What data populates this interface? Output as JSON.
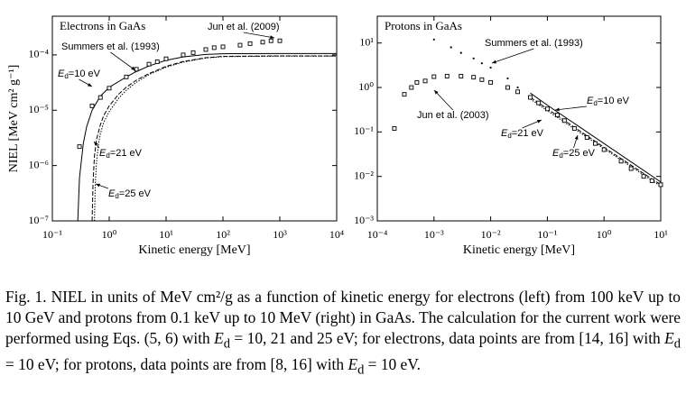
{
  "chart_data": [
    {
      "type": "line",
      "title": "Electrons in GaAs",
      "xlabel": "Kinetic energy [MeV]",
      "ylabel": "NIEL [MeV cm² g⁻¹]",
      "xscale": "log",
      "yscale": "log",
      "xlim": [
        0.1,
        10000
      ],
      "ylim": [
        1e-07,
        0.0005
      ],
      "xticks": [
        {
          "value": 0.1,
          "label": "10⁻¹"
        },
        {
          "value": 1,
          "label": "10⁰"
        },
        {
          "value": 10,
          "label": "10¹"
        },
        {
          "value": 100,
          "label": "10²"
        },
        {
          "value": 1000,
          "label": "10³"
        },
        {
          "value": 10000,
          "label": "10⁴"
        }
      ],
      "yticks": [
        {
          "value": 1e-07,
          "label": "10⁻⁷"
        },
        {
          "value": 1e-06,
          "label": "10⁻⁶"
        },
        {
          "value": 1e-05,
          "label": "10⁻⁵"
        },
        {
          "value": 0.0001,
          "label": "10⁻⁴"
        }
      ],
      "series": [
        {
          "color": "#000000",
          "line_style": "solid",
          "x": [
            0.28,
            0.3,
            0.35,
            0.4,
            0.5,
            0.7,
            1,
            2,
            3,
            5,
            10,
            20,
            50,
            100,
            1000,
            10000
          ],
          "values": [
            1e-07,
            6e-07,
            2.5e-06,
            5e-06,
            1e-05,
            1.8e-05,
            2.6e-05,
            4e-05,
            5e-05,
            6.3e-05,
            8e-05,
            9.2e-05,
            0.000102,
            0.000105,
            0.000106,
            0.000106
          ]
        },
        {
          "color": "#000000",
          "line_style": "dashed",
          "x": [
            0.5,
            0.52,
            0.55,
            0.6,
            0.7,
            0.8,
            1,
            1.5,
            2,
            3,
            5,
            10,
            20,
            50,
            100,
            1000,
            10000
          ],
          "values": [
            1e-07,
            5e-07,
            1.5e-06,
            3e-06,
            5.5e-06,
            8e-06,
            1.2e-05,
            2e-05,
            2.6e-05,
            3.5e-05,
            4.6e-05,
            6.2e-05,
            7.6e-05,
            8.9e-05,
            9.4e-05,
            9.6e-05,
            9.6e-05
          ]
        },
        {
          "color": "#000000",
          "line_style": "dotted",
          "x": [
            0.55,
            0.57,
            0.6,
            0.65,
            0.7,
            0.8,
            1,
            1.5,
            2,
            3,
            5,
            10,
            20,
            50,
            100,
            1000,
            10000
          ],
          "values": [
            1e-07,
            5e-07,
            1.2e-06,
            2.5e-06,
            3.8e-06,
            6e-06,
            9.5e-06,
            1.7e-05,
            2.3e-05,
            3.2e-05,
            4.4e-05,
            6e-05,
            7.4e-05,
            8.8e-05,
            9.3e-05,
            9.5e-05,
            9.5e-05
          ]
        },
        {
          "color": "#000000",
          "marker": "square",
          "x": [
            0.3,
            0.5,
            0.7,
            1,
            2,
            3,
            5,
            7,
            10,
            20,
            30,
            50,
            70,
            100,
            200,
            300,
            500,
            700,
            1000
          ],
          "values": [
            2.2e-06,
            1.2e-05,
            1.7e-05,
            2.5e-05,
            4e-05,
            5.5e-05,
            6.8e-05,
            7.5e-05,
            8.5e-05,
            0.0001,
            0.00011,
            0.000125,
            0.000135,
            0.00014,
            0.00015,
            0.00016,
            0.00017,
            0.00018,
            0.00018
          ]
        }
      ],
      "annotations": [
        {
          "text": "Jun et al. (2009)"
        },
        {
          "text": "Summers et al. (1993)"
        },
        {
          "main": "E",
          "sub": "d",
          "tail": "=10 eV"
        },
        {
          "main": "E",
          "sub": "d",
          "tail": "=21 eV"
        },
        {
          "main": "E",
          "sub": "d",
          "tail": "=25 eV"
        }
      ]
    },
    {
      "type": "line",
      "title": "Protons in GaAs",
      "xlabel": "Kinetic energy [MeV]",
      "xscale": "log",
      "yscale": "log",
      "xlim": [
        0.0001,
        10
      ],
      "ylim": [
        0.001,
        40
      ],
      "xticks": [
        {
          "value": 0.0001,
          "label": "10⁻⁴"
        },
        {
          "value": 0.001,
          "label": "10⁻³"
        },
        {
          "value": 0.01,
          "label": "10⁻²"
        },
        {
          "value": 0.1,
          "label": "10⁻¹"
        },
        {
          "value": 1,
          "label": "10⁰"
        },
        {
          "value": 10,
          "label": "10¹"
        }
      ],
      "yticks": [
        {
          "value": 0.001,
          "label": "10⁻³"
        },
        {
          "value": 0.01,
          "label": "10⁻²"
        },
        {
          "value": 0.1,
          "label": "10⁻¹"
        },
        {
          "value": 1,
          "label": "10⁰"
        },
        {
          "value": 10,
          "label": "10¹"
        }
      ],
      "series": [
        {
          "color": "#000000",
          "line_style": "solid",
          "x": [
            0.05,
            0.1,
            1,
            10
          ],
          "values": [
            0.75,
            0.4,
            0.055,
            0.0075
          ]
        },
        {
          "color": "#000000",
          "line_style": "dashed",
          "x": [
            0.05,
            0.1,
            1,
            10
          ],
          "values": [
            0.6,
            0.33,
            0.045,
            0.0065
          ]
        },
        {
          "color": "#000000",
          "line_style": "dotted",
          "x": [
            0.05,
            0.1,
            1,
            10
          ],
          "values": [
            0.55,
            0.3,
            0.042,
            0.006
          ]
        },
        {
          "color": "#000000",
          "marker": "square",
          "x": [
            0.0002,
            0.0003,
            0.0004,
            0.0005,
            0.0007,
            0.001,
            0.0017,
            0.003,
            0.005,
            0.007,
            0.01,
            0.02,
            0.03,
            0.05,
            0.07,
            0.1,
            0.15,
            0.2,
            0.3,
            0.5,
            0.7,
            1,
            2,
            3,
            5,
            7,
            10
          ],
          "values": [
            0.12,
            0.7,
            1.0,
            1.3,
            1.4,
            1.75,
            1.8,
            1.8,
            1.7,
            1.5,
            1.3,
            1.0,
            0.8,
            0.6,
            0.45,
            0.33,
            0.24,
            0.18,
            0.12,
            0.075,
            0.055,
            0.04,
            0.022,
            0.015,
            0.01,
            0.008,
            0.0065
          ]
        },
        {
          "color": "#000000",
          "marker": "dot",
          "x": [
            0.001,
            0.002,
            0.003,
            0.005,
            0.007,
            0.01,
            0.02,
            0.03
          ],
          "values": [
            12,
            8,
            6,
            4.5,
            3.5,
            2.8,
            1.6,
            1.0
          ]
        }
      ],
      "annotations": [
        {
          "text": "Summers et al. (1993)"
        },
        {
          "text": "Jun et al. (2003)"
        },
        {
          "main": "E",
          "sub": "d",
          "tail": "=10 eV"
        },
        {
          "main": "E",
          "sub": "d",
          "tail": "=21 eV"
        },
        {
          "main": "E",
          "sub": "d",
          "tail": "=25 eV"
        }
      ]
    }
  ],
  "caption": [
    "Fig. 1.  NIEL in units of MeV cm²/g as a function of kinetic energy for electrons (left) from 100 keV up to 10 GeV and protons from 0.1 keV up to 10 MeV (right) in GaAs. The calculation for the current work were performed using Eqs. (5, 6) with ",
    "E",
    "d",
    " = 10, 21 and 25 eV; for electrons, data points are from [14, 16] with ",
    "E",
    "d",
    " = 10 eV; for protons, data points are from [8, 16] with ",
    "E",
    "d",
    " = 10 eV."
  ]
}
